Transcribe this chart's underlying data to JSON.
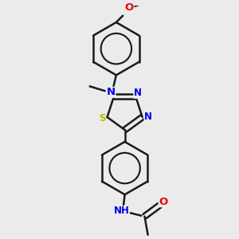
{
  "bg_color": "#ebebeb",
  "bond_color": "#1a1a1a",
  "bond_width": 1.8,
  "atom_colors": {
    "N": "#0000ee",
    "S": "#bbbb00",
    "O": "#ee0000",
    "NH": "#0000ee",
    "C": "#1a1a1a"
  },
  "font_size": 8.5,
  "fig_size": [
    3.0,
    3.0
  ],
  "dpi": 100,
  "xlim": [
    -1.2,
    1.2
  ],
  "ylim": [
    -1.6,
    1.9
  ]
}
